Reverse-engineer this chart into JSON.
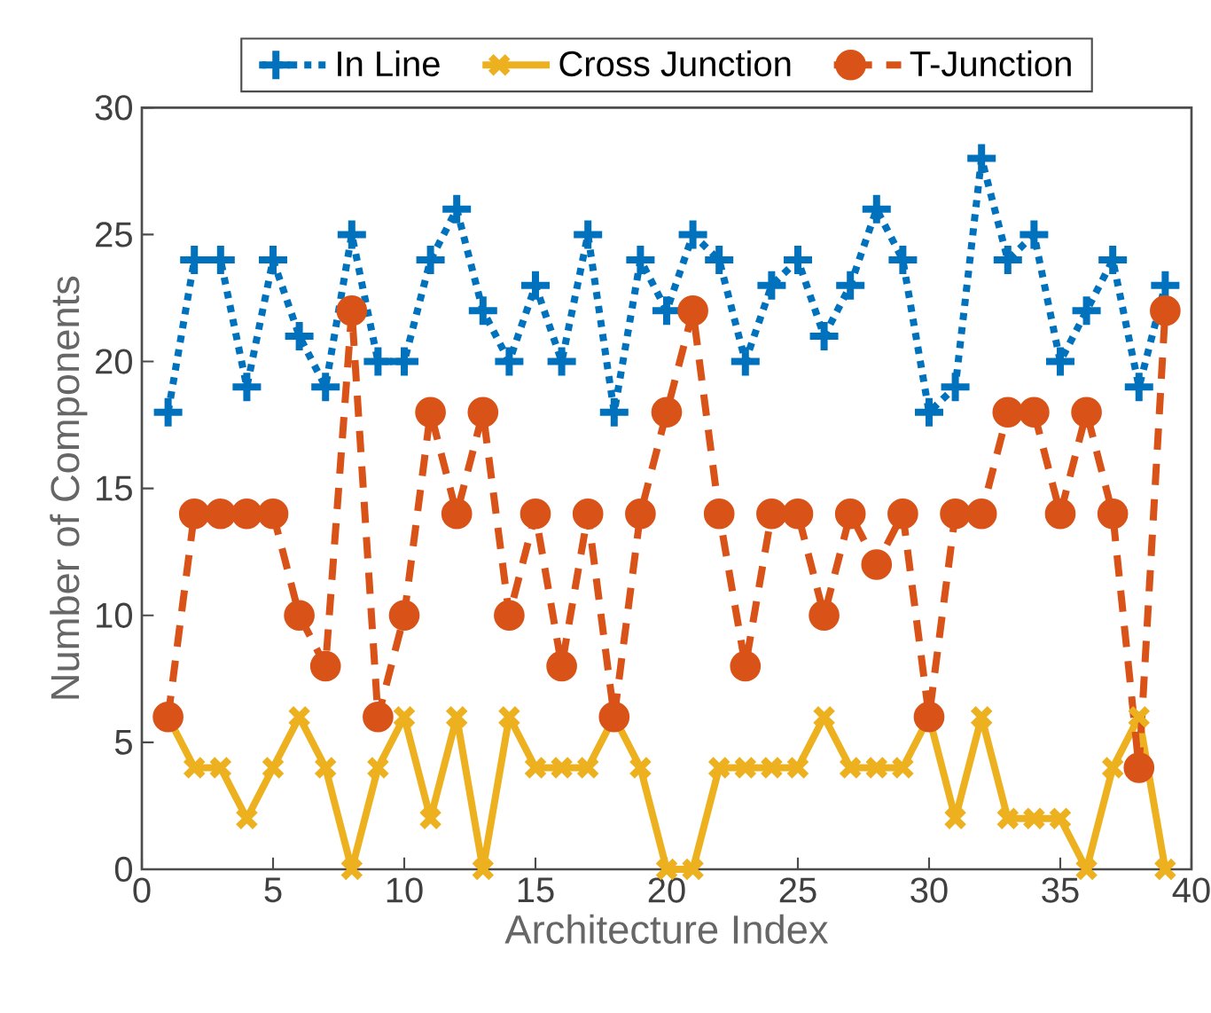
{
  "chart_data": {
    "type": "line",
    "xlabel": "Architecture Index",
    "ylabel": "Number of Components",
    "x": [
      1,
      2,
      3,
      4,
      5,
      6,
      7,
      8,
      9,
      10,
      11,
      12,
      13,
      14,
      15,
      16,
      17,
      18,
      19,
      20,
      21,
      22,
      23,
      24,
      25,
      26,
      27,
      28,
      29,
      30,
      31,
      32,
      33,
      34,
      35,
      36,
      37,
      38,
      39
    ],
    "xlim": [
      0,
      40
    ],
    "xticks": [
      0,
      5,
      10,
      15,
      20,
      25,
      30,
      35,
      40
    ],
    "ylim": [
      0,
      30
    ],
    "yticks": [
      0,
      5,
      10,
      15,
      20,
      25,
      30
    ],
    "legend": "top",
    "series": [
      {
        "name": "In Line",
        "color": "#0072bd",
        "marker": "plus",
        "line_style": "dotted",
        "values": [
          18,
          24,
          24,
          19,
          24,
          21,
          19,
          25,
          20,
          20,
          24,
          26,
          22,
          20,
          23,
          20,
          25,
          18,
          24,
          22,
          25,
          24,
          20,
          23,
          24,
          21,
          23,
          26,
          24,
          18,
          19,
          28,
          24,
          25,
          20,
          22,
          24,
          19,
          23
        ]
      },
      {
        "name": "Cross Junction",
        "color": "#edb120",
        "marker": "cross",
        "line_style": "solid",
        "values": [
          6,
          4,
          4,
          2,
          4,
          6,
          4,
          0,
          4,
          6,
          2,
          6,
          0,
          6,
          4,
          4,
          4,
          6,
          4,
          0,
          0,
          4,
          4,
          4,
          4,
          6,
          4,
          4,
          4,
          6,
          2,
          6,
          2,
          2,
          2,
          0,
          4,
          6,
          0
        ]
      },
      {
        "name": "T-Junction",
        "color": "#d95319",
        "marker": "circle",
        "line_style": "dashed",
        "values": [
          6,
          14,
          14,
          14,
          14,
          10,
          8,
          22,
          6,
          10,
          18,
          14,
          18,
          10,
          14,
          8,
          14,
          6,
          14,
          18,
          22,
          14,
          8,
          14,
          14,
          10,
          14,
          12,
          14,
          6,
          14,
          14,
          18,
          18,
          14,
          18,
          14,
          4,
          22
        ]
      }
    ]
  }
}
